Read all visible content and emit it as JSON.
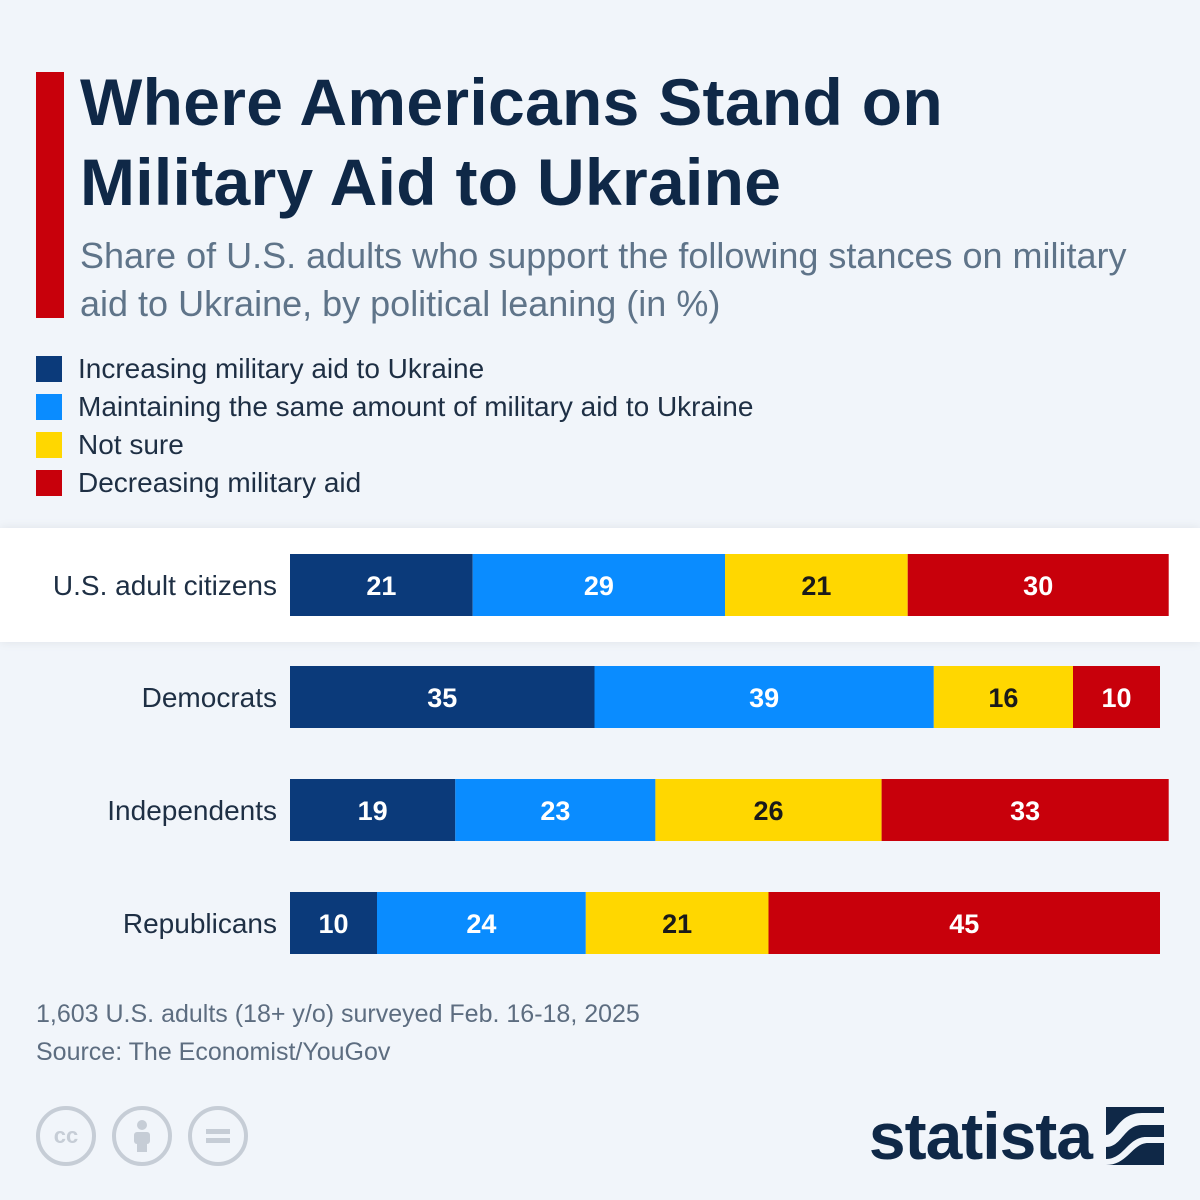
{
  "title": "Where Americans Stand on Military Aid to Ukraine",
  "subtitle": "Share of U.S. adults who support the following stances on military aid to Ukraine, by political leaning (in %)",
  "colors": {
    "increasing": "#0b3a7a",
    "maintaining": "#0a8cff",
    "not_sure": "#ffd700",
    "decreasing": "#c8000b",
    "accent": "#c8000b",
    "title": "#0f2847"
  },
  "chart_data": {
    "type": "bar",
    "stacked": true,
    "orientation": "horizontal",
    "title": "Where Americans Stand on Military Aid to Ukraine",
    "xlabel": "",
    "ylabel": "",
    "xlim": [
      0,
      100
    ],
    "categories": [
      "U.S. adult citizens",
      "Democrats",
      "Independents",
      "Republicans"
    ],
    "highlighted_category": "U.S. adult citizens",
    "series": [
      {
        "name": "Increasing military aid to Ukraine",
        "color": "#0b3a7a",
        "label_color": "#ffffff",
        "values": [
          21,
          35,
          19,
          10
        ]
      },
      {
        "name": "Maintaining the same amount of military aid to Ukraine",
        "color": "#0a8cff",
        "label_color": "#ffffff",
        "values": [
          29,
          39,
          23,
          24
        ]
      },
      {
        "name": "Not sure",
        "color": "#ffd700",
        "label_color": "#1a1a1a",
        "values": [
          21,
          16,
          26,
          21
        ]
      },
      {
        "name": "Decreasing military aid",
        "color": "#c8000b",
        "label_color": "#ffffff",
        "values": [
          30,
          10,
          33,
          45
        ]
      }
    ]
  },
  "footnote": {
    "survey": "1,603 U.S. adults (18+ y/o) surveyed Feb. 16-18, 2025",
    "source": "Source: The Economist/YouGov"
  },
  "license_icons": {
    "cc": "cc-icon",
    "by": "attribution-person-icon",
    "nd": "equals-icon",
    "cc_text": "cc"
  },
  "brand": {
    "name": "statista",
    "icon": "statista-logo-icon"
  }
}
